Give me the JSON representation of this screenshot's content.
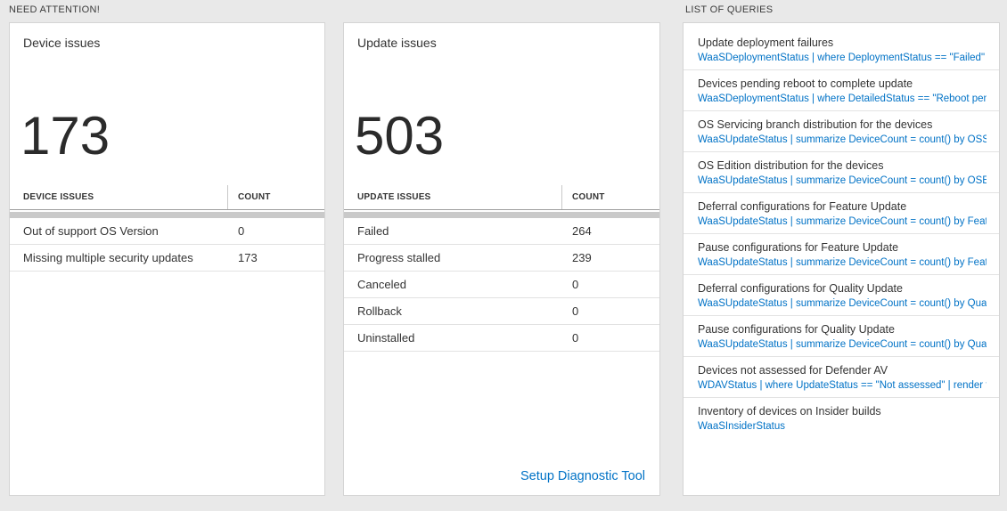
{
  "sections": {
    "need_attention_label": "NEED ATTENTION!",
    "queries_label": "LIST OF QUERIES"
  },
  "colors": {
    "background": "#e9e9e9",
    "link_blue": "#0072c6",
    "text_dark": "#333333"
  },
  "device_card": {
    "title": "Device issues",
    "big_number": "173",
    "table": {
      "headers": [
        "DEVICE ISSUES",
        "COUNT"
      ],
      "rows": [
        {
          "label": "Out of support OS Version",
          "count": "0"
        },
        {
          "label": "Missing multiple security updates",
          "count": "173"
        }
      ]
    }
  },
  "update_card": {
    "title": "Update issues",
    "big_number": "503",
    "table": {
      "headers": [
        "UPDATE ISSUES",
        "COUNT"
      ],
      "rows": [
        {
          "label": "Failed",
          "count": "264"
        },
        {
          "label": "Progress stalled",
          "count": "239"
        },
        {
          "label": "Canceled",
          "count": "0"
        },
        {
          "label": "Rollback",
          "count": "0"
        },
        {
          "label": "Uninstalled",
          "count": "0"
        }
      ]
    },
    "footer_link": "Setup Diagnostic Tool"
  },
  "queries_card": {
    "items": [
      {
        "title": "Update deployment failures",
        "query": "WaaSDeploymentStatus | where DeploymentStatus == \"Failed\" |..."
      },
      {
        "title": "Devices pending reboot to complete update",
        "query": "WaaSDeploymentStatus | where DetailedStatus == \"Reboot pend..."
      },
      {
        "title": "OS Servicing branch distribution for the devices",
        "query": "WaaSUpdateStatus | summarize DeviceCount = count() by OSSer..."
      },
      {
        "title": "OS Edition distribution for the devices",
        "query": "WaaSUpdateStatus | summarize DeviceCount = count() by OSEdit..."
      },
      {
        "title": "Deferral configurations for Feature Update",
        "query": "WaaSUpdateStatus | summarize DeviceCount = count() by Featur..."
      },
      {
        "title": "Pause configurations for Feature Update",
        "query": "WaaSUpdateStatus | summarize DeviceCount = count() by Featur..."
      },
      {
        "title": "Deferral configurations for Quality Update",
        "query": "WaaSUpdateStatus | summarize DeviceCount = count() by Qualit..."
      },
      {
        "title": "Pause configurations for Quality Update",
        "query": "WaaSUpdateStatus | summarize DeviceCount = count() by Qualit..."
      },
      {
        "title": "Devices not assessed for Defender AV",
        "query": "WDAVStatus | where UpdateStatus == \"Not assessed\" | render ta..."
      },
      {
        "title": "Inventory of devices on Insider builds",
        "query": "WaaSInsiderStatus"
      }
    ]
  }
}
